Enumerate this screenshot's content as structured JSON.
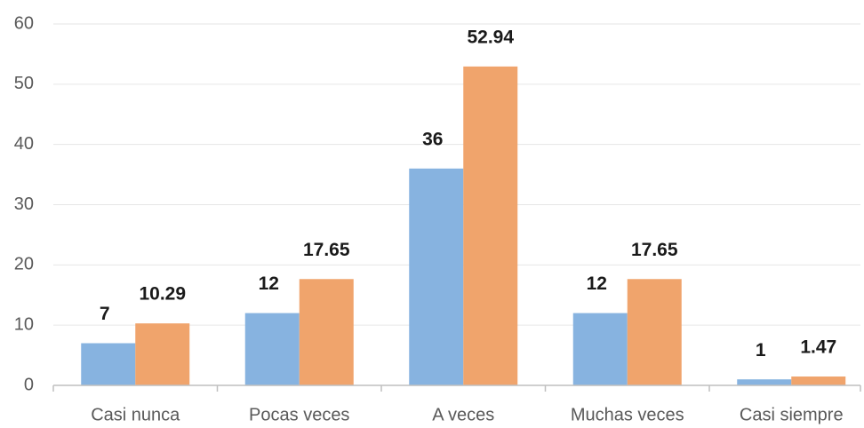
{
  "chart_data": {
    "type": "bar",
    "categories": [
      "Casi nunca",
      "Pocas veces",
      "A veces",
      "Muchas veces",
      "Casi siempre"
    ],
    "series": [
      {
        "color": "#87b3e0",
        "values": [
          7,
          12,
          36,
          12,
          1
        ]
      },
      {
        "color": "#f0a46c",
        "values": [
          10.29,
          17.65,
          52.94,
          17.65,
          1.47
        ]
      }
    ],
    "ylim": [
      0,
      60
    ],
    "yticks": [
      0,
      10,
      20,
      30,
      40,
      50,
      60
    ],
    "grid": true,
    "data_labels": true
  }
}
